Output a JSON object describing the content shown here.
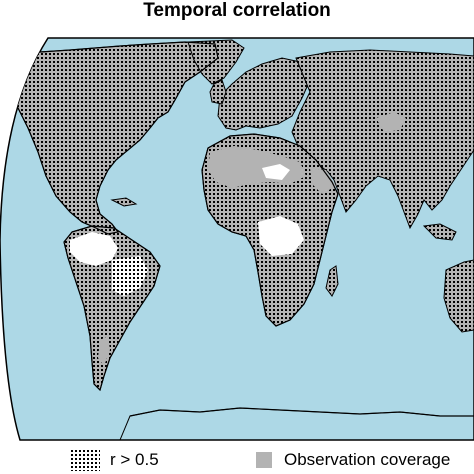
{
  "title": "Temporal correlation",
  "colors": {
    "ocean": "#add8e6",
    "coverage": "#b3b3b3",
    "stipple": "#000000",
    "no_data": "#ffffff",
    "coastline": "#000000"
  },
  "legend": {
    "items": [
      {
        "symbol": "stipple-pattern",
        "label": "r > 0.5"
      },
      {
        "symbol": "grey-square",
        "label": "Observation coverage"
      }
    ]
  }
}
